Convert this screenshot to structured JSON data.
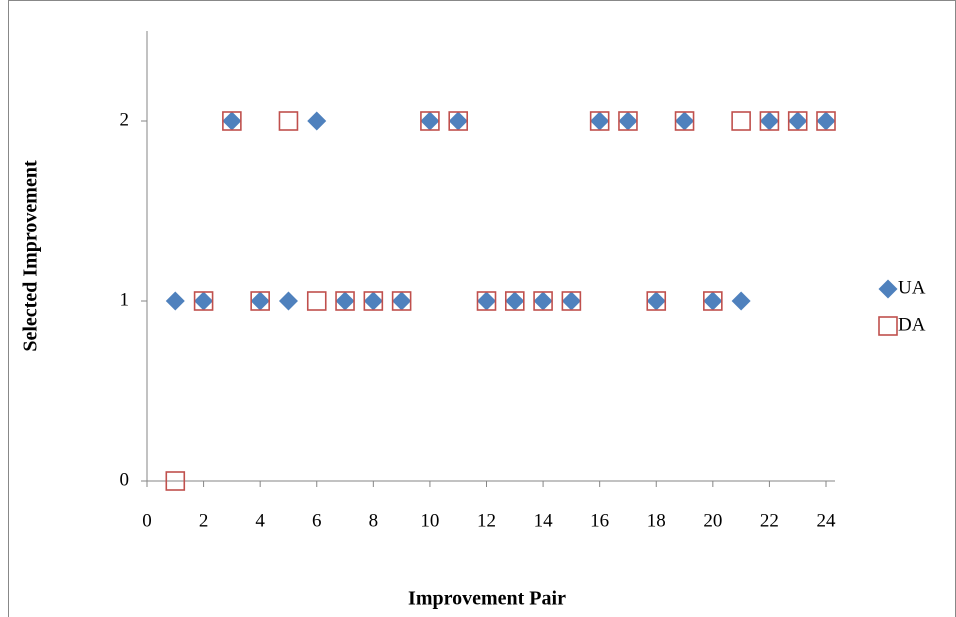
{
  "chart_data": {
    "type": "scatter",
    "x_label": "Improvement Pair",
    "y_label": "Selected Improvement",
    "x": [
      1,
      2,
      3,
      4,
      5,
      6,
      7,
      8,
      9,
      10,
      11,
      12,
      13,
      14,
      15,
      16,
      17,
      18,
      19,
      20,
      21,
      22,
      23,
      24
    ],
    "series": [
      {
        "name": "UA",
        "color": "#4f81bd",
        "marker": "diamond",
        "values": [
          1,
          1,
          2,
          1,
          1,
          2,
          1,
          1,
          1,
          2,
          2,
          1,
          1,
          1,
          1,
          2,
          2,
          1,
          2,
          1,
          1,
          2,
          2,
          2
        ]
      },
      {
        "name": "DA",
        "color": "#c0504d",
        "marker": "square",
        "values": [
          0,
          1,
          2,
          1,
          2,
          1,
          1,
          1,
          1,
          2,
          2,
          1,
          1,
          1,
          1,
          2,
          2,
          1,
          2,
          1,
          2,
          2,
          2,
          2
        ]
      }
    ],
    "xlim": [
      0,
      24
    ],
    "xticks": [
      0,
      2,
      4,
      6,
      8,
      10,
      12,
      14,
      16,
      18,
      20,
      22,
      24
    ],
    "ylim": [
      0,
      2.5
    ],
    "yticks": [
      0,
      1,
      2
    ],
    "grid": false,
    "legend": "right"
  }
}
